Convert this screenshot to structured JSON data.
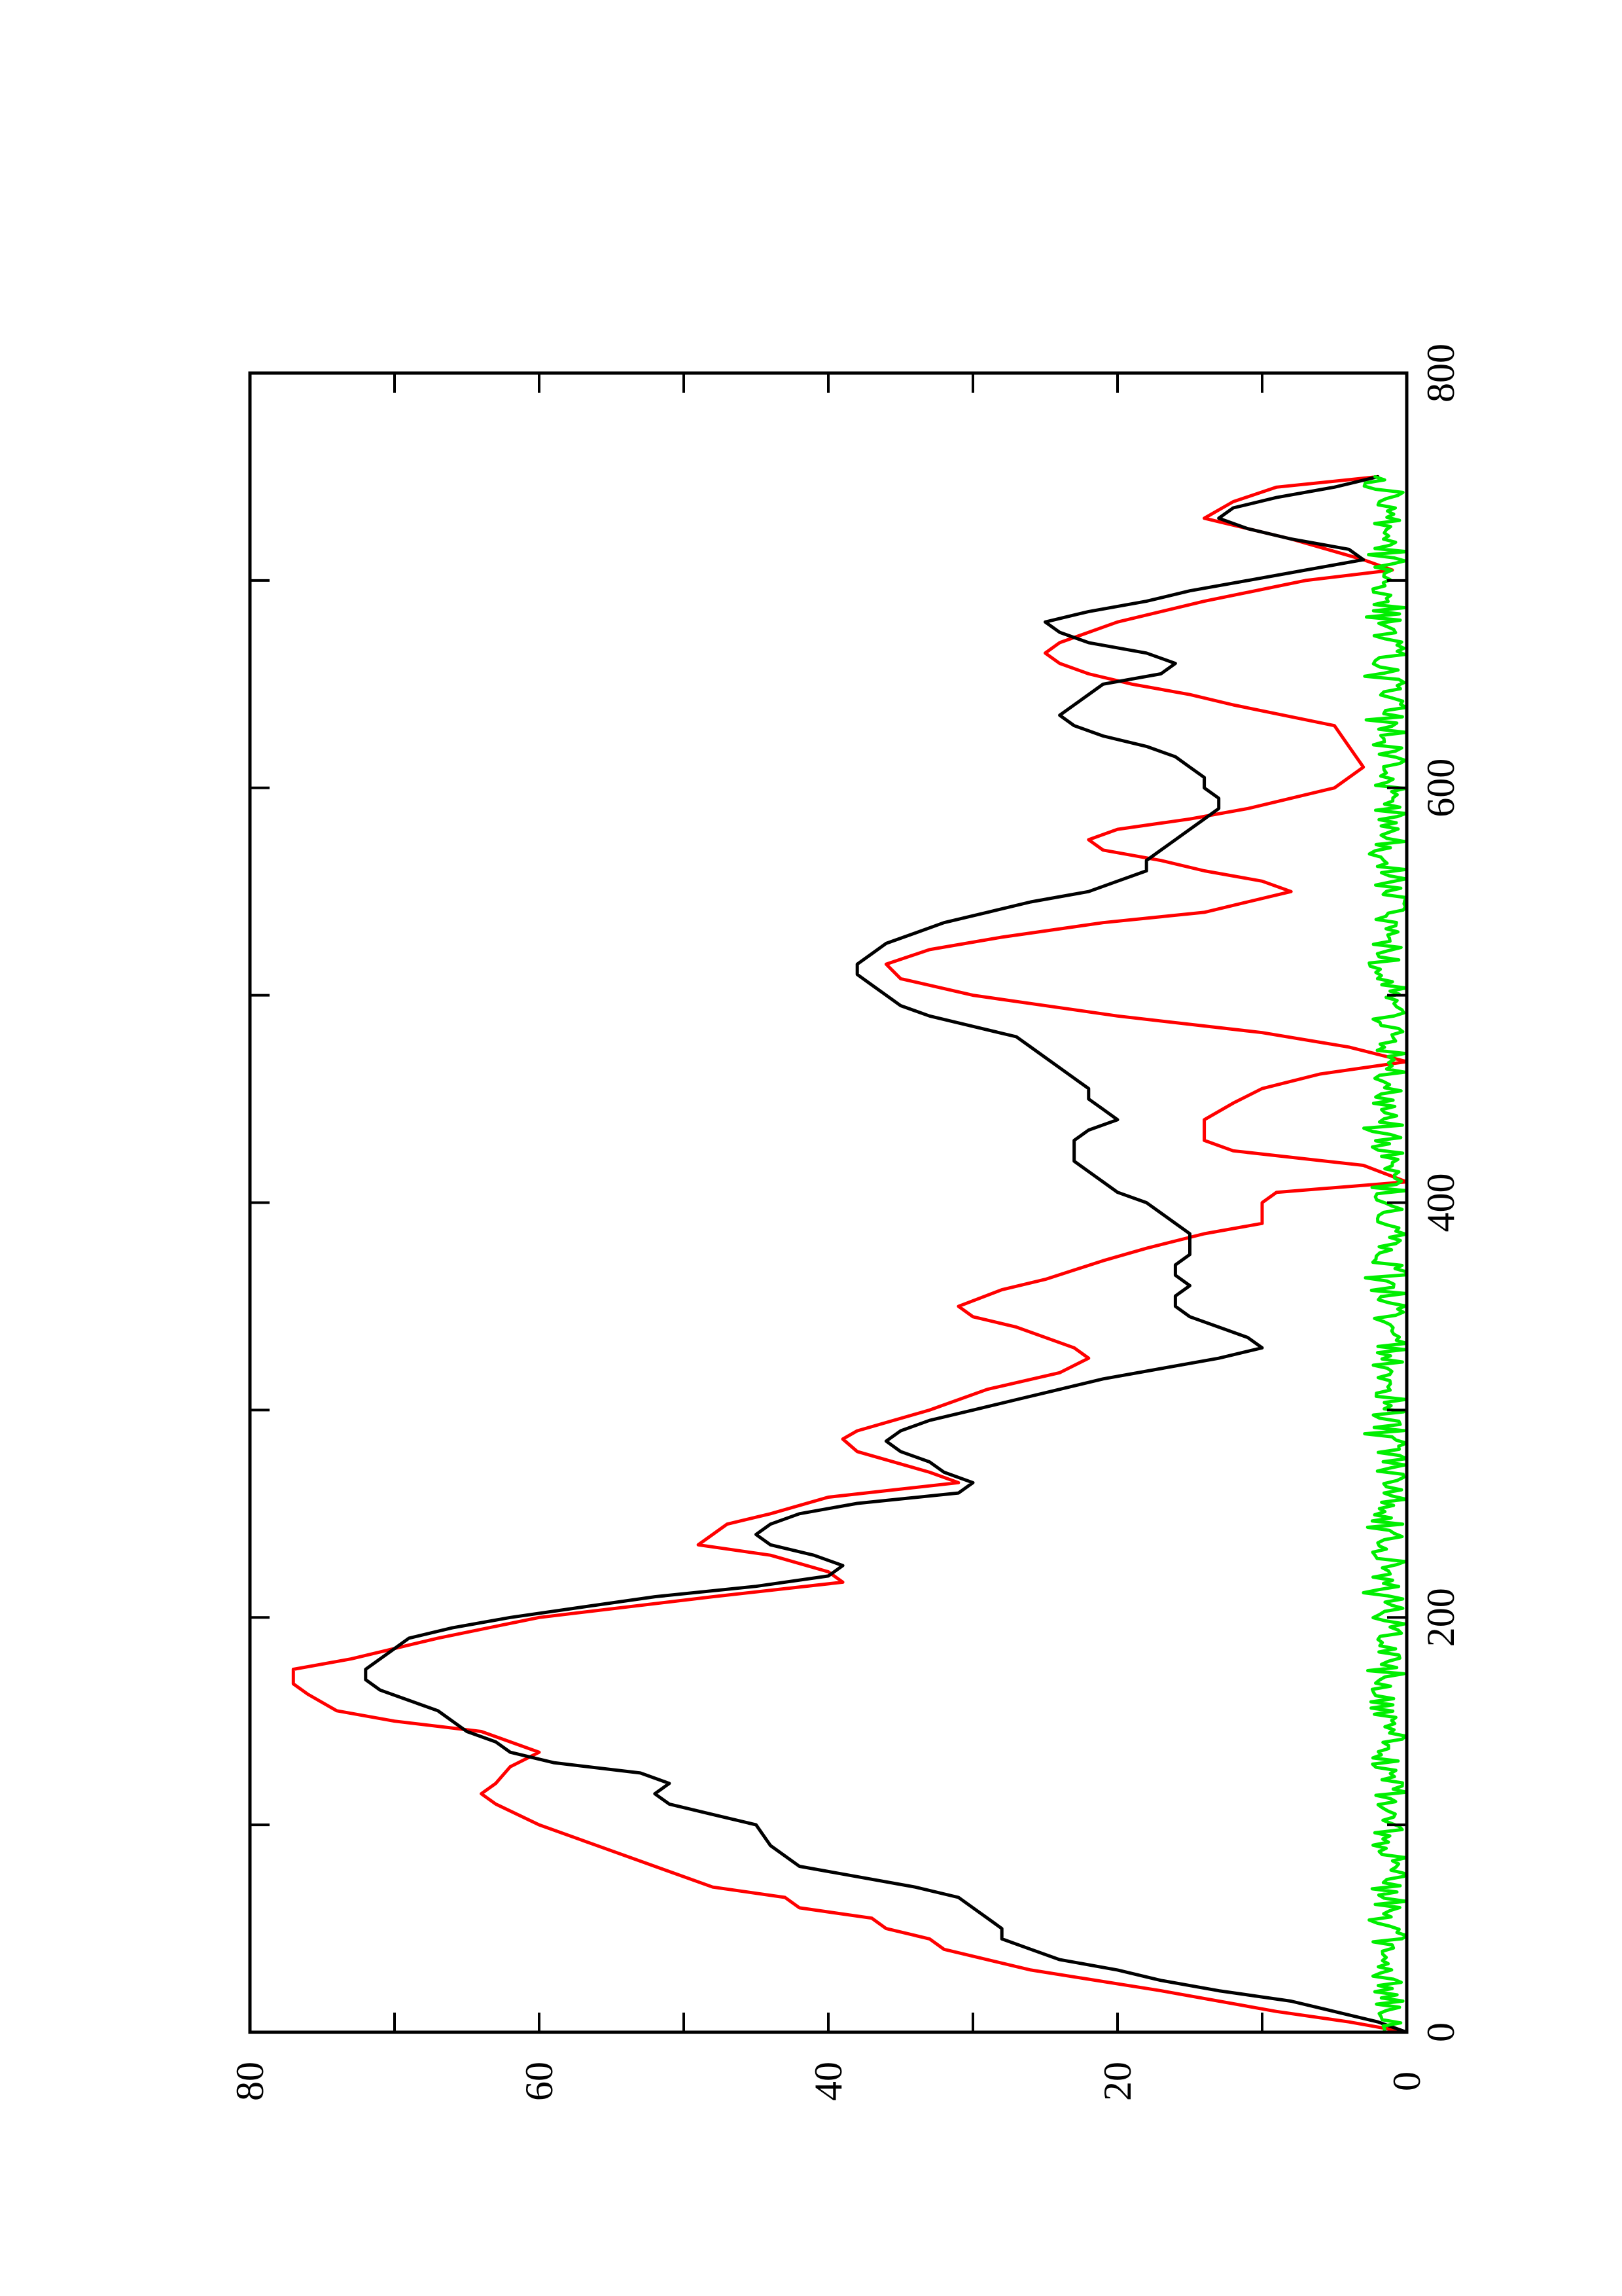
{
  "chart_data": {
    "type": "line",
    "orientation": "rotated-90-counterclockwise",
    "xlim": [
      0,
      800
    ],
    "ylim": [
      0,
      80
    ],
    "x_ticks": [
      0,
      100,
      200,
      300,
      400,
      500,
      600,
      700,
      800
    ],
    "x_tick_labels": [
      "0",
      "200",
      "400",
      "600",
      "800"
    ],
    "x_labeled_ticks": [
      0,
      200,
      400,
      600,
      800
    ],
    "y_ticks": [
      0,
      10,
      20,
      30,
      40,
      50,
      60,
      70,
      80
    ],
    "y_tick_labels": [
      "0",
      "20",
      "40",
      "60",
      "80"
    ],
    "y_labeled_ticks": [
      0,
      20,
      40,
      60,
      80
    ],
    "grid": false,
    "legend": "none",
    "series": [
      {
        "color": "#ff0000",
        "x": [
          0,
          5,
          10,
          20,
          30,
          40,
          45,
          50,
          55,
          60,
          65,
          70,
          80,
          90,
          100,
          110,
          115,
          120,
          128,
          135,
          145,
          150,
          155,
          163,
          168,
          175,
          180,
          190,
          200,
          210,
          217,
          222,
          230,
          235,
          245,
          250,
          258,
          265,
          270,
          280,
          286,
          290,
          300,
          310,
          318,
          325,
          330,
          340,
          345,
          350,
          358,
          363,
          372,
          378,
          385,
          390,
          400,
          405,
          410,
          418,
          425,
          430,
          440,
          448,
          455,
          462,
          468,
          475,
          482,
          490,
          496,
          500,
          508,
          515,
          522,
          528,
          535,
          540,
          545,
          550,
          555,
          560,
          565,
          570,
          575,
          580,
          585,
          590,
          600,
          610,
          620,
          630,
          640,
          645,
          650,
          655,
          660,
          665,
          670,
          680,
          690,
          700,
          705,
          710,
          720,
          725,
          730,
          738,
          745,
          750
        ],
        "y": [
          0,
          4,
          9,
          17,
          26,
          32,
          33,
          36,
          37,
          42,
          43,
          48,
          52,
          56,
          60,
          63,
          64,
          63,
          62,
          60,
          64,
          70,
          74,
          76,
          77,
          77,
          73,
          67,
          60,
          48,
          39,
          40,
          44,
          49,
          47,
          44,
          40,
          31,
          33,
          38,
          39,
          38,
          33,
          29,
          24,
          22,
          23,
          27,
          30,
          31,
          28,
          25,
          21,
          18,
          14,
          10,
          10,
          9,
          0,
          3,
          12,
          14,
          14,
          12,
          10,
          6,
          0,
          4,
          10,
          20,
          26,
          30,
          35,
          36,
          33,
          28,
          21,
          14,
          11,
          8,
          10,
          14,
          17,
          21,
          22,
          20,
          15,
          11,
          5,
          3,
          4,
          5,
          12,
          15,
          19,
          22,
          24,
          25,
          24,
          20,
          14,
          7,
          1,
          3,
          8,
          11,
          14,
          12,
          9,
          2
        ]
      },
      {
        "color": "#000000",
        "x": [
          0,
          5,
          10,
          15,
          20,
          25,
          30,
          35,
          40,
          45,
          50,
          55,
          60,
          65,
          70,
          80,
          90,
          100,
          105,
          110,
          115,
          120,
          125,
          130,
          135,
          140,
          145,
          150,
          155,
          160,
          165,
          170,
          175,
          180,
          185,
          190,
          195,
          200,
          205,
          210,
          215,
          220,
          225,
          230,
          235,
          240,
          245,
          250,
          255,
          260,
          265,
          270,
          275,
          280,
          285,
          290,
          295,
          300,
          305,
          310,
          315,
          320,
          325,
          330,
          335,
          340,
          345,
          350,
          355,
          360,
          365,
          370,
          375,
          380,
          385,
          390,
          395,
          400,
          405,
          410,
          415,
          420,
          425,
          430,
          435,
          440,
          445,
          450,
          455,
          460,
          465,
          470,
          475,
          480,
          485,
          490,
          495,
          500,
          505,
          510,
          515,
          520,
          525,
          530,
          535,
          540,
          545,
          550,
          555,
          560,
          565,
          570,
          575,
          580,
          585,
          590,
          595,
          600,
          605,
          610,
          615,
          620,
          625,
          630,
          635,
          640,
          645,
          650,
          655,
          660,
          665,
          670,
          675,
          680,
          685,
          690,
          695,
          700,
          705,
          710,
          715,
          720,
          725,
          730,
          735,
          740,
          745,
          750
        ],
        "y": [
          0,
          2,
          5,
          8,
          13,
          17,
          20,
          24,
          26,
          28,
          28,
          29,
          30,
          31,
          34,
          42,
          44,
          45,
          48,
          51,
          52,
          51,
          53,
          59,
          62,
          63,
          65,
          66,
          67,
          69,
          71,
          72,
          72,
          71,
          70,
          69,
          66,
          62,
          57,
          52,
          45,
          40,
          39,
          41,
          44,
          45,
          44,
          42,
          38,
          31,
          30,
          32,
          33,
          35,
          36,
          35,
          33,
          30,
          27,
          24,
          21,
          17,
          13,
          10,
          11,
          13,
          15,
          16,
          16,
          15,
          16,
          16,
          15,
          15,
          15,
          16,
          17,
          18,
          20,
          21,
          22,
          23,
          23,
          23,
          22,
          20,
          21,
          22,
          22,
          23,
          24,
          25,
          26,
          27,
          30,
          33,
          35,
          36,
          37,
          38,
          38,
          37,
          36,
          34,
          32,
          29,
          26,
          22,
          20,
          18,
          18,
          17,
          16,
          15,
          14,
          13,
          13,
          14,
          14,
          15,
          16,
          18,
          21,
          23,
          24,
          23,
          22,
          21,
          17,
          16,
          18,
          22,
          24,
          25,
          22,
          18,
          15,
          11,
          7,
          3,
          4,
          8,
          11,
          13,
          12,
          9,
          5,
          2
        ]
      },
      {
        "color": "#00ee00",
        "noise": true,
        "x_start": 0,
        "x_end": 750,
        "n_points": 500,
        "y_min": 0,
        "y_max": 3,
        "y_mean": 1
      }
    ]
  }
}
